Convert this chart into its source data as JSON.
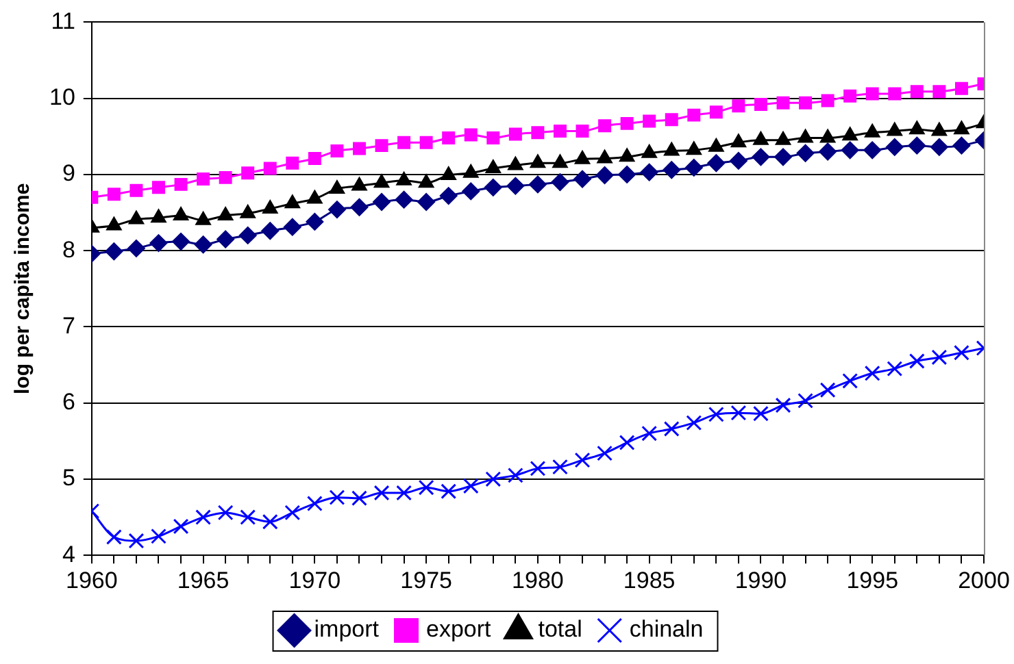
{
  "chart_data": {
    "type": "line",
    "ylabel": "log per capita income",
    "x": [
      1960,
      1961,
      1962,
      1963,
      1964,
      1965,
      1966,
      1967,
      1968,
      1969,
      1970,
      1971,
      1972,
      1973,
      1974,
      1975,
      1976,
      1977,
      1978,
      1979,
      1980,
      1981,
      1982,
      1983,
      1984,
      1985,
      1986,
      1987,
      1988,
      1989,
      1990,
      1991,
      1992,
      1993,
      1994,
      1995,
      1996,
      1997,
      1998,
      1999,
      2000
    ],
    "series": [
      {
        "name": "import",
        "color": "#000080",
        "marker": "diamond",
        "values": [
          7.96,
          7.99,
          8.03,
          8.1,
          8.12,
          8.08,
          8.15,
          8.2,
          8.26,
          8.31,
          8.38,
          8.54,
          8.57,
          8.64,
          8.67,
          8.64,
          8.72,
          8.78,
          8.83,
          8.85,
          8.87,
          8.9,
          8.94,
          8.99,
          9.0,
          9.03,
          9.06,
          9.09,
          9.15,
          9.18,
          9.23,
          9.23,
          9.28,
          9.3,
          9.32,
          9.32,
          9.36,
          9.38,
          9.36,
          9.38,
          9.45
        ]
      },
      {
        "name": "export",
        "color": "#ff00ff",
        "marker": "square",
        "values": [
          8.7,
          8.74,
          8.79,
          8.83,
          8.87,
          8.94,
          8.96,
          9.02,
          9.08,
          9.15,
          9.21,
          9.31,
          9.34,
          9.38,
          9.42,
          9.42,
          9.48,
          9.52,
          9.48,
          9.53,
          9.55,
          9.57,
          9.57,
          9.64,
          9.67,
          9.7,
          9.72,
          9.78,
          9.82,
          9.9,
          9.92,
          9.94,
          9.94,
          9.97,
          10.03,
          10.06,
          10.06,
          10.09,
          10.09,
          10.13,
          10.19
        ]
      },
      {
        "name": "total",
        "color": "#000000",
        "marker": "triangle",
        "values": [
          8.3,
          8.33,
          8.41,
          8.43,
          8.46,
          8.4,
          8.46,
          8.49,
          8.55,
          8.62,
          8.68,
          8.81,
          8.85,
          8.89,
          8.92,
          8.89,
          8.99,
          9.02,
          9.08,
          9.12,
          9.15,
          9.15,
          9.2,
          9.21,
          9.23,
          9.28,
          9.31,
          9.32,
          9.36,
          9.42,
          9.45,
          9.45,
          9.48,
          9.48,
          9.51,
          9.55,
          9.57,
          9.59,
          9.57,
          9.59,
          9.67
        ]
      },
      {
        "name": "chinaln",
        "color": "#0000ff",
        "marker": "cross",
        "values": [
          4.58,
          4.24,
          4.19,
          4.25,
          4.38,
          4.5,
          4.56,
          4.5,
          4.44,
          4.56,
          4.68,
          4.76,
          4.75,
          4.82,
          4.82,
          4.89,
          4.84,
          4.91,
          5.0,
          5.05,
          5.14,
          5.16,
          5.25,
          5.34,
          5.48,
          5.6,
          5.66,
          5.74,
          5.85,
          5.87,
          5.86,
          5.97,
          6.03,
          6.17,
          6.29,
          6.39,
          6.45,
          6.55,
          6.6,
          6.66,
          6.72
        ]
      }
    ],
    "xlim": [
      1960,
      2000
    ],
    "xticks": [
      1960,
      {
        "value": 1961,
        "label": null
      },
      {
        "value": 1962,
        "label": null
      },
      {
        "value": 1963,
        "label": null
      },
      {
        "value": 1964,
        "label": null
      },
      1965,
      {
        "value": 1966,
        "label": null
      },
      {
        "value": 1967,
        "label": null
      },
      {
        "value": 1968,
        "label": null
      },
      {
        "value": 1969,
        "label": null
      },
      1970,
      {
        "value": 1971,
        "label": null
      },
      {
        "value": 1972,
        "label": null
      },
      {
        "value": 1973,
        "label": null
      },
      {
        "value": 1974,
        "label": null
      },
      1975,
      {
        "value": 1976,
        "label": null
      },
      {
        "value": 1977,
        "label": null
      },
      {
        "value": 1978,
        "label": null
      },
      {
        "value": 1979,
        "label": null
      },
      1980,
      {
        "value": 1981,
        "label": null
      },
      {
        "value": 1982,
        "label": null
      },
      {
        "value": 1983,
        "label": null
      },
      {
        "value": 1984,
        "label": null
      },
      1985,
      {
        "value": 1986,
        "label": null
      },
      {
        "value": 1987,
        "label": null
      },
      {
        "value": 1988,
        "label": null
      },
      {
        "value": 1989,
        "label": null
      },
      1990,
      {
        "value": 1991,
        "label": null
      },
      {
        "value": 1992,
        "label": null
      },
      {
        "value": 1993,
        "label": null
      },
      {
        "value": 1994,
        "label": null
      },
      1995,
      {
        "value": 1996,
        "label": null
      },
      {
        "value": 1997,
        "label": null
      },
      {
        "value": 1998,
        "label": null
      },
      {
        "value": 1999,
        "label": null
      },
      2000
    ],
    "ylim": [
      4,
      11
    ],
    "yticks": [
      4,
      5,
      6,
      7,
      8,
      9,
      10,
      11
    ],
    "grid": "y",
    "legend": "bottom",
    "line_style": "solid"
  }
}
